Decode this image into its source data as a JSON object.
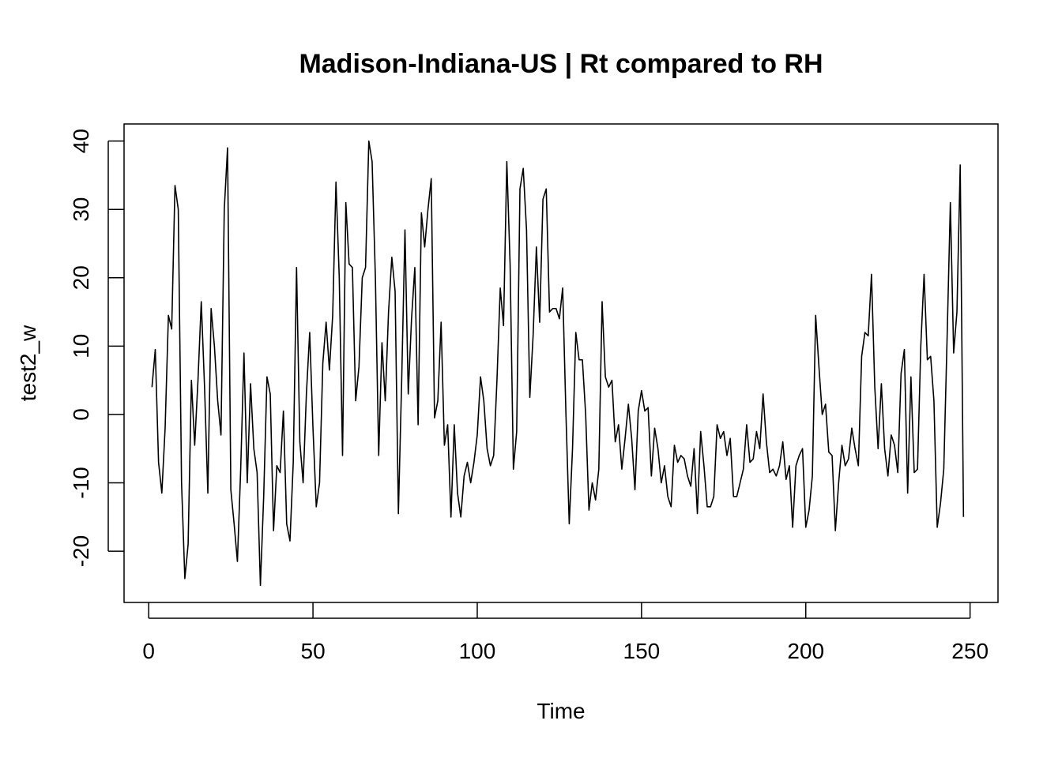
{
  "chart_data": {
    "type": "line",
    "title": "Madison-Indiana-US | Rt compared to RH",
    "xlabel": "Time",
    "ylabel": "test2_w",
    "xlim": [
      -7.5,
      258.5
    ],
    "ylim": [
      -27.5,
      42.5
    ],
    "x_ticks": [
      0,
      50,
      100,
      150,
      200,
      250
    ],
    "x_tick_labels": [
      "0",
      "50",
      "100",
      "150",
      "200",
      "250"
    ],
    "y_ticks": [
      -20,
      -10,
      0,
      10,
      20,
      30,
      40
    ],
    "y_tick_labels": [
      "-20",
      "-10",
      "0",
      "10",
      "20",
      "30",
      "40"
    ],
    "grid": false,
    "line_color": "#000000",
    "series": [
      {
        "x_start": 1,
        "x_step": 1,
        "values": [
          4,
          9.5,
          -7,
          -11.5,
          -2,
          14.5,
          12.5,
          33.5,
          30,
          -10,
          -24,
          -19,
          5,
          -4.5,
          5,
          16.5,
          4,
          -11.5,
          15.5,
          10,
          2,
          -3,
          30,
          39,
          -11,
          -16,
          -21.5,
          -8,
          9,
          -10,
          4.5,
          -5,
          -8.5,
          -25,
          -12,
          5.5,
          3,
          -17,
          -7.5,
          -8.5,
          0.5,
          -16,
          -18.5,
          -7,
          21.5,
          -4,
          -10,
          3,
          12,
          -2,
          -13.5,
          -10,
          7.5,
          13.5,
          6.5,
          14.5,
          34,
          20,
          -6,
          31,
          22,
          21.5,
          2,
          7,
          20,
          21.5,
          40,
          37,
          20,
          -6,
          10.5,
          2,
          15,
          23,
          18,
          -14.5,
          5,
          27,
          3,
          14,
          21.5,
          -1.5,
          29.5,
          24.5,
          30,
          34.5,
          -0.5,
          2,
          13.5,
          -4.5,
          -1.5,
          -15,
          -1.5,
          -11.5,
          -15,
          -9,
          -7,
          -10,
          -7,
          -3,
          5.5,
          2,
          -5,
          -7.5,
          -6,
          5,
          18.5,
          13,
          37,
          22,
          -8,
          -2.5,
          33,
          36,
          27,
          2.5,
          11.5,
          24.5,
          13.5,
          31.5,
          33,
          15,
          15.5,
          15.5,
          14,
          18.5,
          0,
          -16,
          -5,
          12,
          8,
          8,
          0,
          -14,
          -10,
          -12.5,
          -8,
          16.5,
          5.5,
          4,
          5,
          -4,
          -1.5,
          -8,
          -3.5,
          1.5,
          -3.5,
          -11,
          0.5,
          3.5,
          0.5,
          1,
          -9,
          -2,
          -5,
          -10,
          -7.5,
          -12,
          -13.5,
          -4.5,
          -7,
          -6,
          -6.5,
          -9,
          -10.5,
          -5,
          -14.5,
          -2.5,
          -7.5,
          -13.5,
          -13.5,
          -12,
          -1.5,
          -3.5,
          -2.5,
          -6,
          -3.5,
          -12,
          -12,
          -10,
          -8,
          -1.5,
          -7,
          -6.5,
          -2.5,
          -5,
          3,
          -4,
          -8.5,
          -8,
          -9,
          -7.5,
          -4,
          -9.5,
          -7.5,
          -16.5,
          -7.5,
          -6,
          -5,
          -16.5,
          -14,
          -9,
          14.5,
          7,
          0,
          1.5,
          -5.5,
          -6,
          -17,
          -10,
          -4.5,
          -7.5,
          -6.5,
          -2,
          -5,
          -7.5,
          8.5,
          12,
          11.5,
          20.5,
          4,
          -5,
          4.5,
          -5,
          -9,
          -3,
          -4.5,
          -8.5,
          6,
          9.5,
          -11.5,
          5.5,
          -8.5,
          -8,
          10,
          20.5,
          8,
          8.5,
          2,
          -16.5,
          -13,
          -8,
          11,
          31,
          9,
          15,
          36.5,
          -15
        ]
      }
    ]
  }
}
